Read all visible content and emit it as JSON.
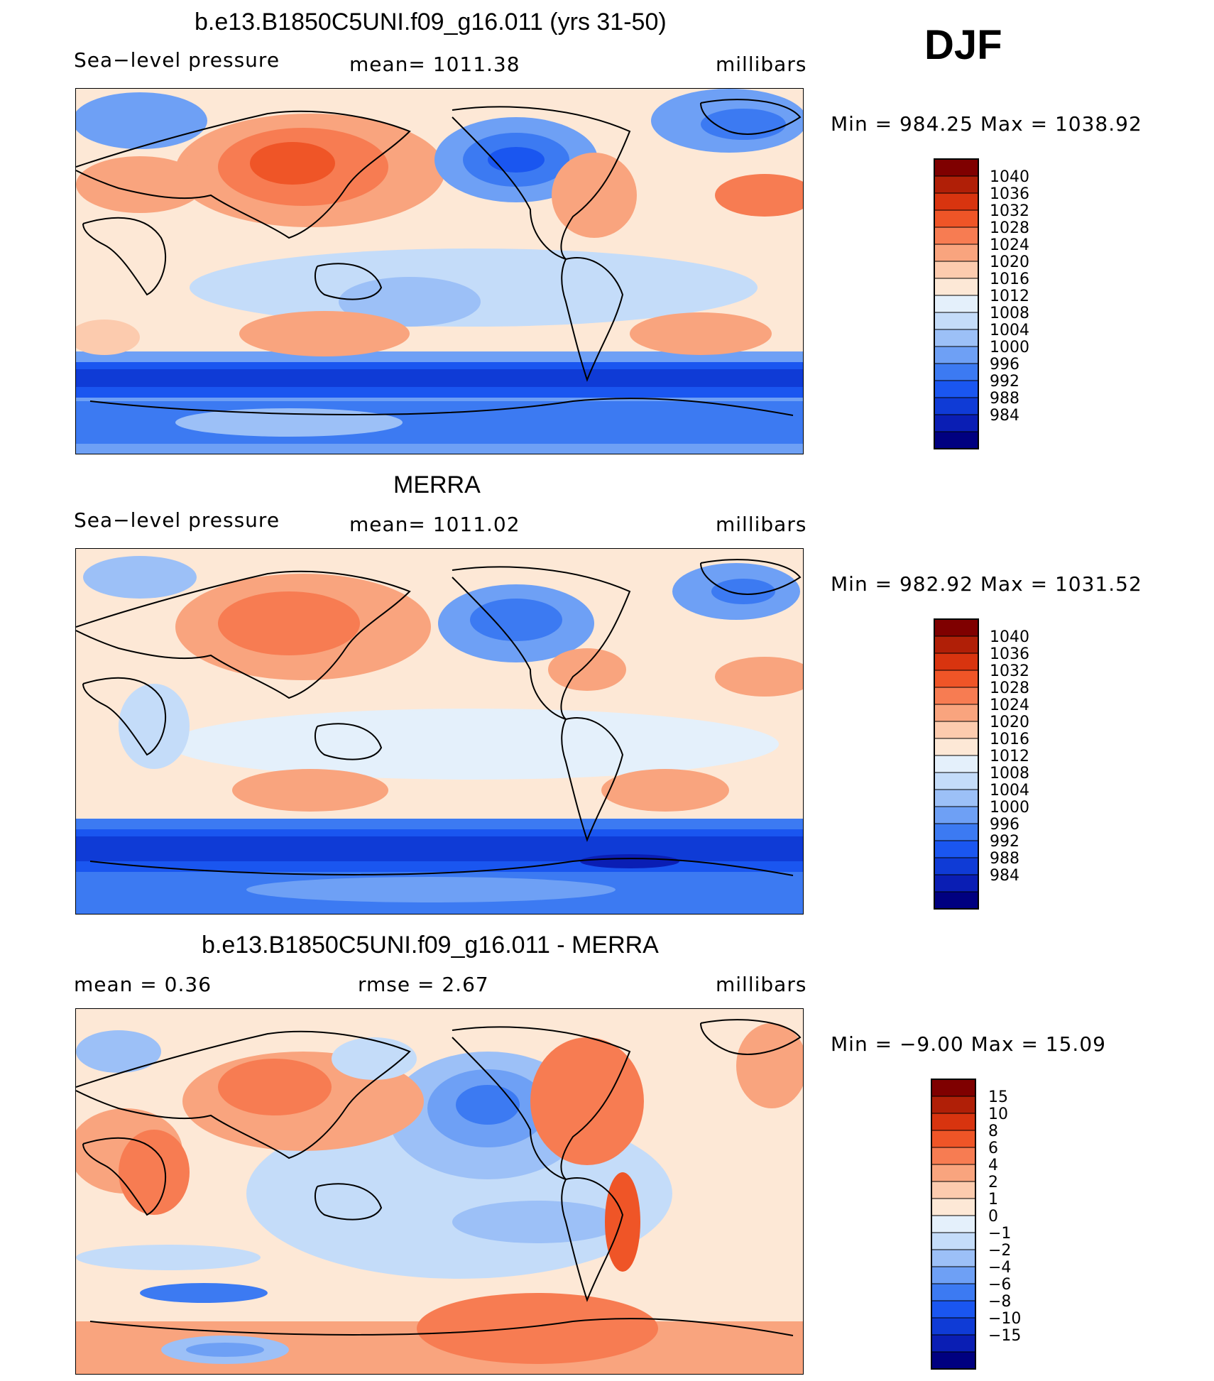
{
  "season": "DJF",
  "colors": {
    "scale": [
      "#000080",
      "#0a1eb4",
      "#0f3bd6",
      "#1a56f0",
      "#3c7af2",
      "#6ea0f5",
      "#9cc0f7",
      "#c4dcf9",
      "#e4f0fb",
      "#fde8d6",
      "#fccbae",
      "#f9a47e",
      "#f77c52",
      "#ef5527",
      "#d8340f",
      "#b01f07",
      "#7f0000"
    ]
  },
  "panels": [
    {
      "title": "b.e13.B1850C5UNI.f09_g16.011 (yrs 31-50)",
      "left_label": "Sea−level pressure",
      "center_label": "mean=  1011.38",
      "units": "millibars",
      "minmax": "Min  =  984.25  Max  =  1038.92"
    },
    {
      "title": "MERRA",
      "left_label": "Sea−level pressure",
      "center_label": "mean=  1011.02",
      "units": "millibars",
      "minmax": "Min  =  982.92  Max  =  1031.52"
    },
    {
      "title": "b.e13.B1850C5UNI.f09_g16.011 - MERRA",
      "left_label": "mean  =      0.36",
      "center_label": "rmse  =      2.67",
      "units": "millibars",
      "minmax": "Min  =   −9.00  Max  =     15.09"
    }
  ],
  "chart_data": [
    {
      "type": "heatmap",
      "title": "b.e13.B1850C5UNI.f09_g16.011 (yrs 31-50)",
      "variable": "Sea-level pressure",
      "units": "millibars",
      "mean": 1011.38,
      "min": 984.25,
      "max": 1038.92,
      "colorbar_levels": [
        "1040",
        "1036",
        "1032",
        "1028",
        "1024",
        "1020",
        "1016",
        "1012",
        "1008",
        "1004",
        "1000",
        "996",
        "992",
        "988",
        "984"
      ]
    },
    {
      "type": "heatmap",
      "title": "MERRA",
      "variable": "Sea-level pressure",
      "units": "millibars",
      "mean": 1011.02,
      "min": 982.92,
      "max": 1031.52,
      "colorbar_levels": [
        "1040",
        "1036",
        "1032",
        "1028",
        "1024",
        "1020",
        "1016",
        "1012",
        "1008",
        "1004",
        "1000",
        "996",
        "992",
        "988",
        "984"
      ]
    },
    {
      "type": "heatmap",
      "title": "b.e13.B1850C5UNI.f09_g16.011 - MERRA",
      "units": "millibars",
      "mean": 0.36,
      "rmse": 2.67,
      "min": -9.0,
      "max": 15.09,
      "colorbar_levels": [
        "15",
        "10",
        "8",
        "6",
        "4",
        "2",
        "1",
        "0",
        "−1",
        "−2",
        "−4",
        "−6",
        "−8",
        "−10",
        "−15"
      ]
    }
  ]
}
